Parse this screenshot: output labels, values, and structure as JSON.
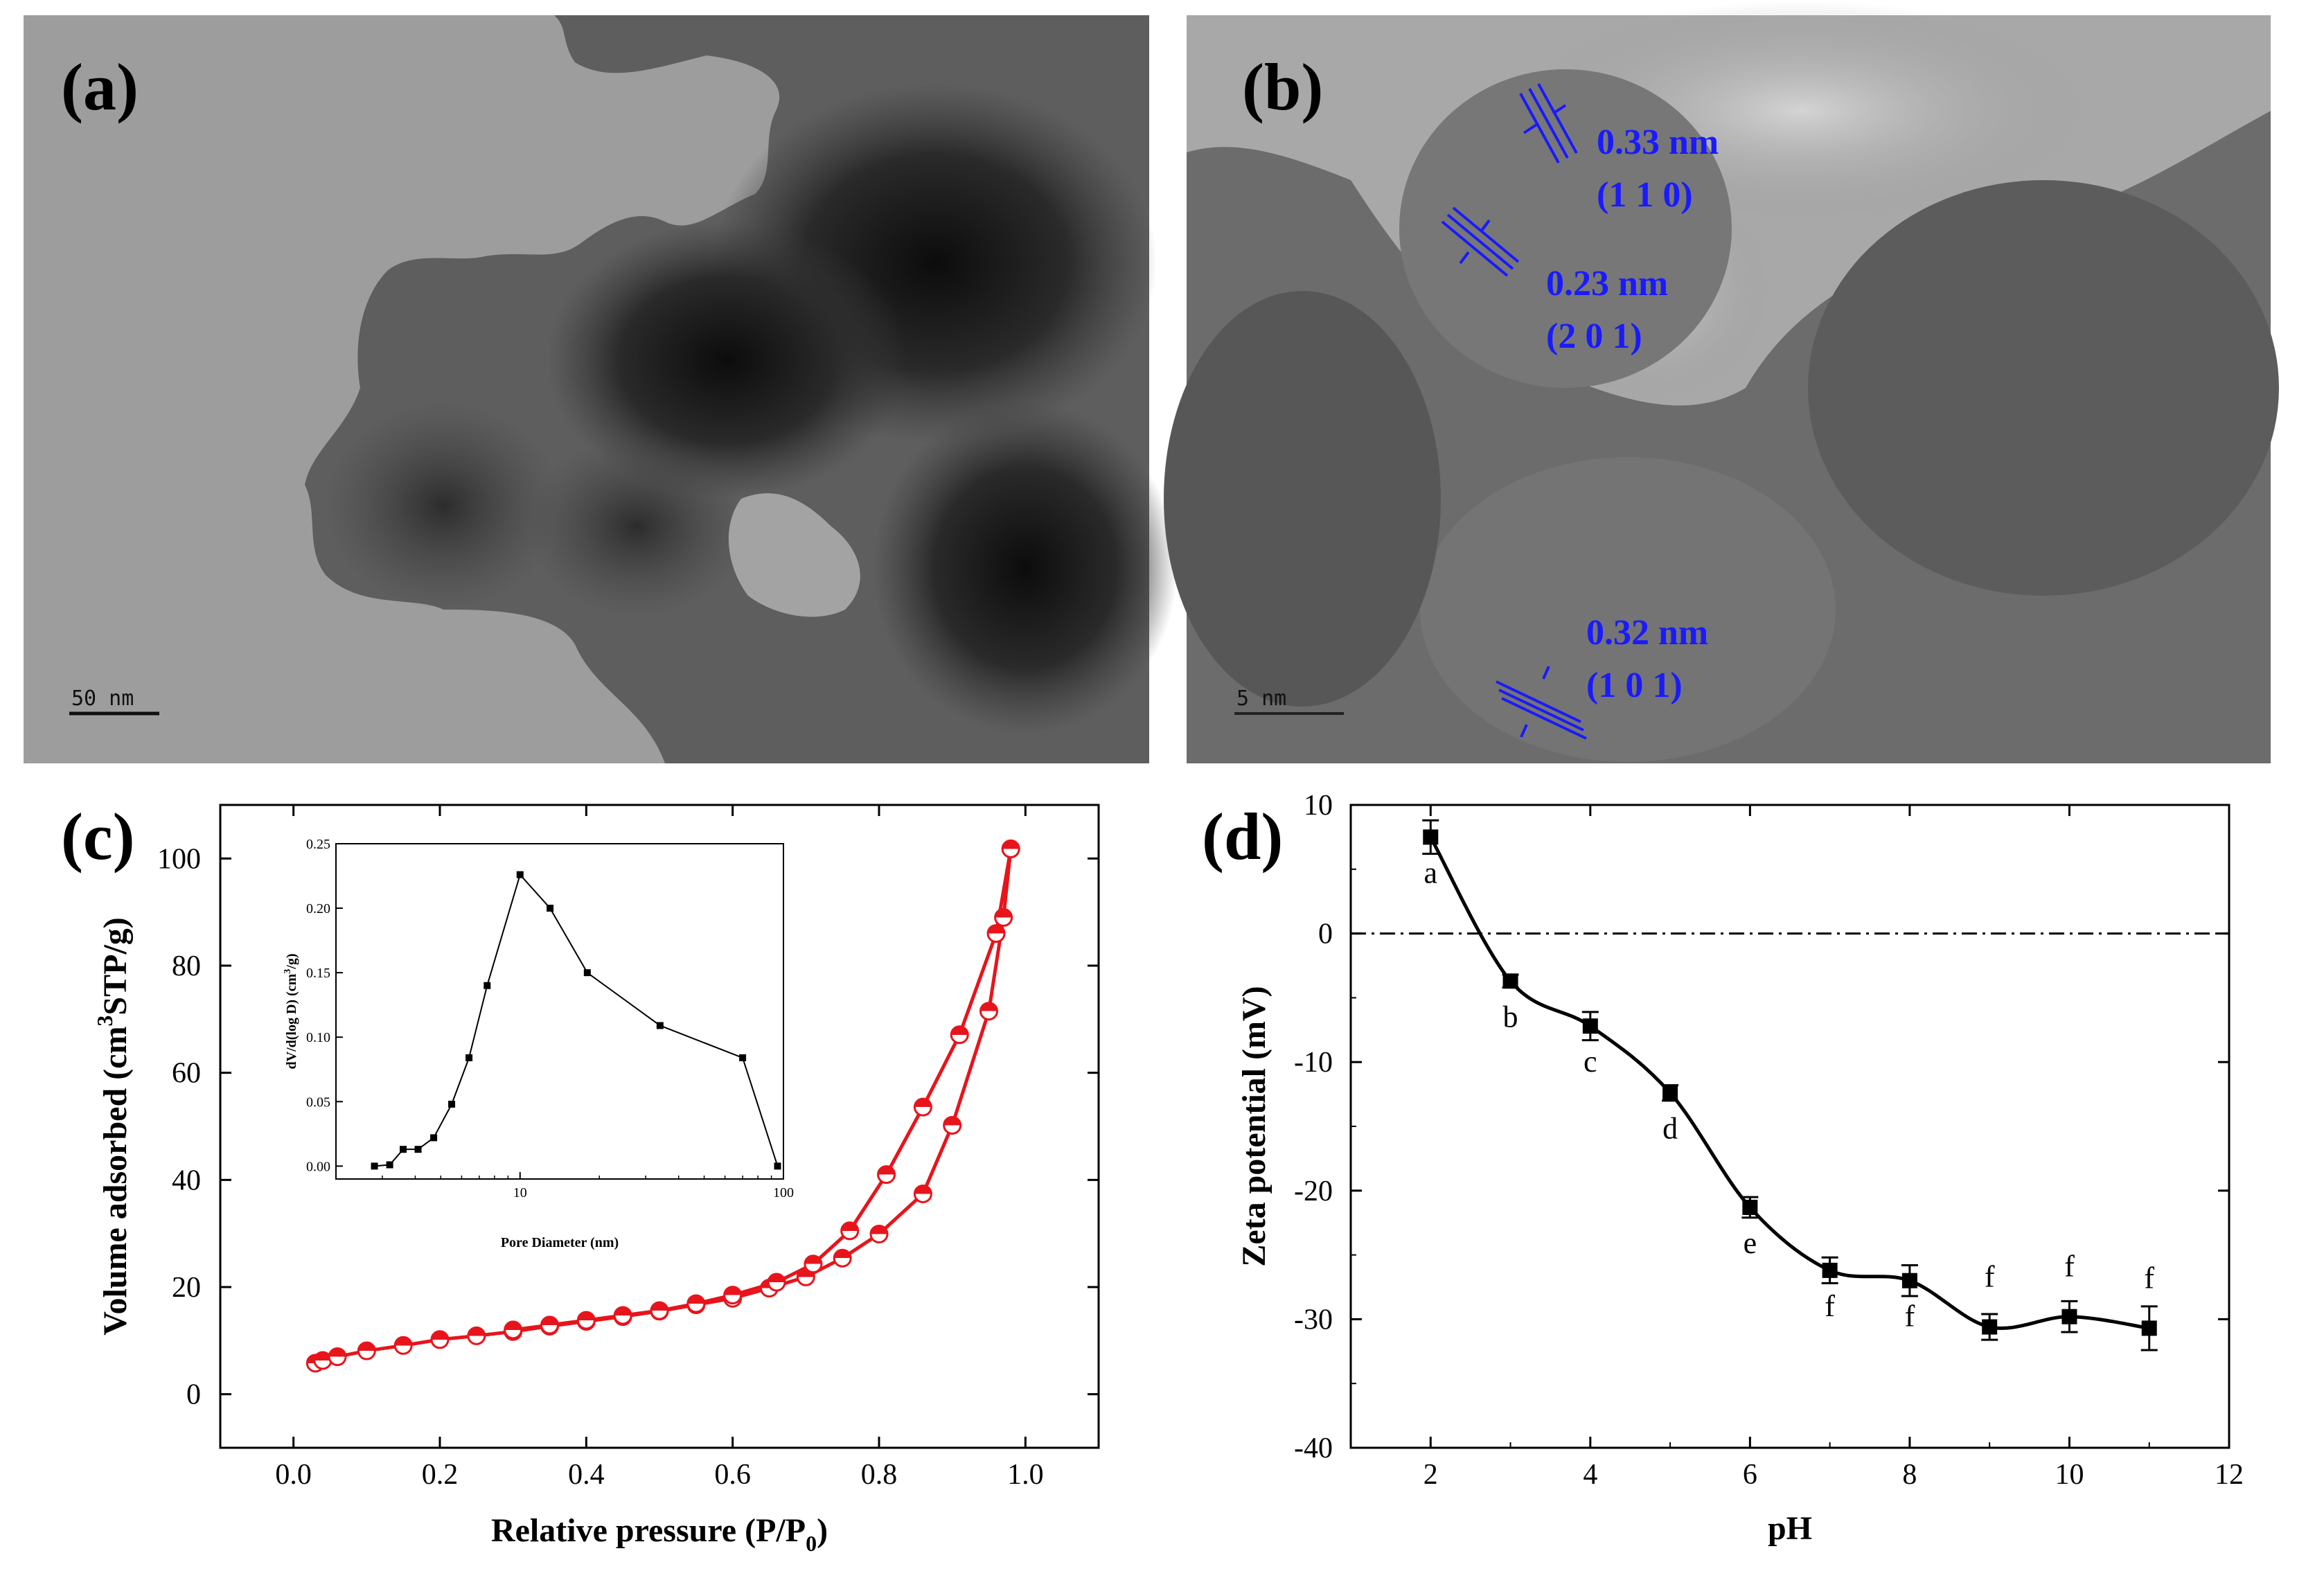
{
  "panels": {
    "a": {
      "letter": "(a)",
      "scale_bar": "50 nm",
      "background": "#9c9c9c"
    },
    "b": {
      "letter": "(b)",
      "scale_bar": "5 nm",
      "background": "#6e6e6e",
      "annotations": [
        {
          "spacing": "0.33 nm",
          "plane": "(1 1 0)"
        },
        {
          "spacing": "0.23 nm",
          "plane": "(2 0 1)"
        },
        {
          "spacing": "0.32 nm",
          "plane": "(1 0 1)"
        }
      ],
      "annotation_color": "#1a1aff"
    },
    "c": {
      "letter": "(c)"
    },
    "d": {
      "letter": "(d)"
    }
  },
  "chart_data": [
    {
      "panel": "c",
      "type": "line",
      "xlabel": "Relative pressure (P/P0)",
      "xlabel_main": "Relative pressure (P/P",
      "xlabel_sub": "0",
      "xlabel_end": ")",
      "ylabel": "Volume adsorbed (cm3STP/g)",
      "ylabel_main": "Volume adsorbed (cm",
      "ylabel_sup": "3",
      "ylabel_end": "STP/g)",
      "xlim": [
        -0.1,
        1.1
      ],
      "ylim": [
        -10,
        110
      ],
      "xticks": [
        "0.0",
        "0.2",
        "0.4",
        "0.6",
        "0.8",
        "1.0"
      ],
      "yticks": [
        "0",
        "20",
        "40",
        "60",
        "80",
        "100"
      ],
      "color": "#e8141b",
      "series": [
        {
          "x": [
            0.03,
            0.04,
            0.06,
            0.1,
            0.15,
            0.2,
            0.25,
            0.3,
            0.35,
            0.4,
            0.45,
            0.5,
            0.55,
            0.6,
            0.65,
            0.7,
            0.75,
            0.8,
            0.86,
            0.9,
            0.95,
            0.97,
            0.98
          ],
          "values": [
            5.8,
            6.3,
            7.0,
            8.1,
            9.1,
            10.2,
            10.9,
            11.7,
            12.7,
            13.6,
            14.5,
            15.5,
            16.7,
            17.9,
            19.8,
            21.9,
            25.4,
            29.9,
            37.4,
            50.2,
            71.5,
            89.0,
            101.8
          ]
        },
        {
          "x": [
            0.98,
            0.96,
            0.91,
            0.86,
            0.81,
            0.76,
            0.71,
            0.66,
            0.6,
            0.55,
            0.5,
            0.45,
            0.4,
            0.35,
            0.3
          ],
          "values": [
            101.8,
            86.0,
            67.1,
            53.6,
            41.0,
            30.5,
            24.3,
            20.9,
            18.5,
            16.9,
            15.6,
            14.7,
            13.8,
            12.9,
            12.0
          ]
        }
      ],
      "inset": {
        "type": "line",
        "xlabel": "Pore Diameter (nm)",
        "ylabel": "dV/d(log D) (cm3/g)",
        "ylabel_main": "dV/d(log D) (cm",
        "ylabel_sup": "3",
        "ylabel_end": "/g)",
        "x_scale": "log",
        "xlim": [
          2,
          100
        ],
        "ylim": [
          -0.01,
          0.25
        ],
        "xticks": [
          "10",
          "100"
        ],
        "yticks": [
          "0.00",
          "0.05",
          "0.10",
          "0.15",
          "0.20",
          "0.25"
        ],
        "x": [
          2.8,
          3.2,
          3.6,
          4.1,
          4.7,
          5.5,
          6.4,
          7.5,
          10,
          13,
          18,
          34,
          70,
          95
        ],
        "values": [
          0.0,
          0.001,
          0.013,
          0.013,
          0.022,
          0.048,
          0.084,
          0.14,
          0.226,
          0.2,
          0.15,
          0.109,
          0.084,
          0.0
        ]
      }
    },
    {
      "panel": "d",
      "type": "scatter",
      "xlabel": "pH",
      "ylabel": "Zeta potential (mV)",
      "xlim": [
        1,
        12
      ],
      "ylim": [
        -40,
        10
      ],
      "xticks": [
        "2",
        "4",
        "6",
        "8",
        "10",
        "12"
      ],
      "yticks": [
        "10",
        "0",
        "-10",
        "-20",
        "-30",
        "-40"
      ],
      "x": [
        2,
        3,
        4,
        5,
        6,
        7,
        8,
        9,
        10,
        11
      ],
      "values": [
        7.5,
        -3.7,
        -7.2,
        -12.4,
        -21.3,
        -26.2,
        -27.0,
        -30.6,
        -29.8,
        -30.7
      ],
      "errors": [
        1.3,
        0.5,
        1.1,
        0.6,
        0.8,
        1.0,
        1.2,
        1.0,
        1.2,
        1.7
      ],
      "point_labels": [
        "a",
        "b",
        "c",
        "d",
        "e",
        "f",
        "f",
        "f",
        "f",
        "f"
      ],
      "label_positions": [
        "below",
        "below",
        "below",
        "below",
        "below",
        "below",
        "below",
        "above",
        "above",
        "above"
      ],
      "reference_line": 0
    }
  ]
}
